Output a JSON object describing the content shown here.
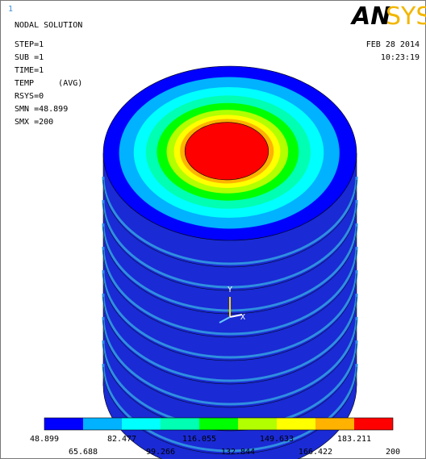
{
  "window_number": "1",
  "info": [
    "NODAL SOLUTION",
    "STEP=1",
    "SUB =1",
    "TIME=1",
    "TEMP     (AVG)",
    "RSYS=0",
    "SMN =48.899",
    "SMX =200"
  ],
  "logo": [
    "AN",
    "SYS"
  ],
  "date": "FEB 28 2014",
  "time": "10:23:19",
  "triad": {
    "y_label": "Y",
    "x_label": "X"
  },
  "legend": {
    "colors": [
      "#0000ff",
      "#00b2ff",
      "#00ffff",
      "#00ffb2",
      "#00ff00",
      "#b2ff00",
      "#ffff00",
      "#ffb200",
      "#ff0000"
    ],
    "values": [
      48.899,
      65.688,
      82.477,
      99.266,
      116.055,
      132.844,
      149.633,
      166.422,
      183.211,
      200
    ]
  }
}
